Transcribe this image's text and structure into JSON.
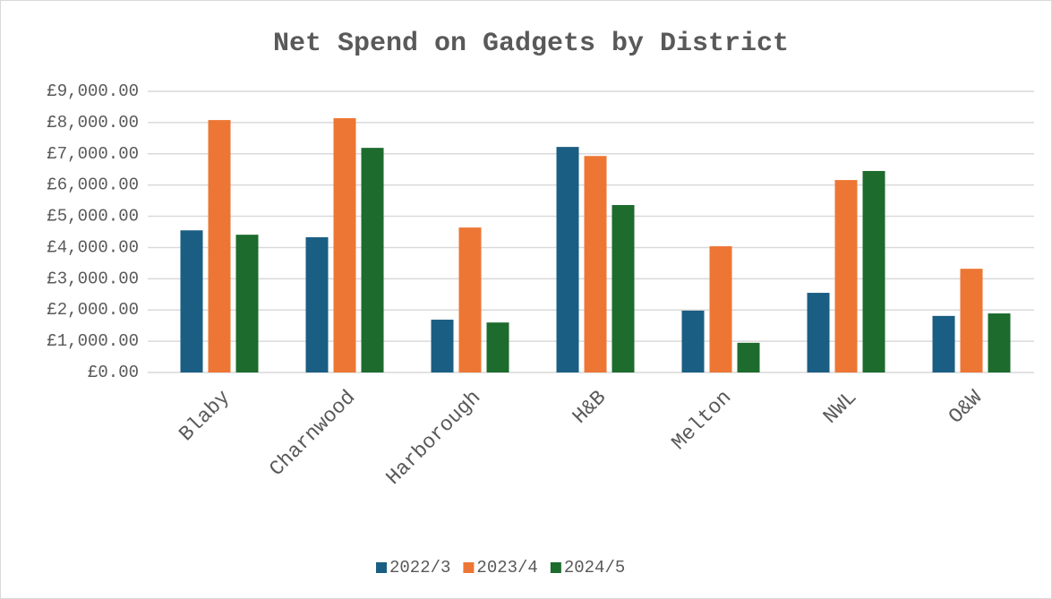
{
  "chart_data": {
    "type": "bar",
    "title": "Net Spend on Gadgets by District",
    "categories": [
      "Blaby",
      "Charnwood",
      "Harborough",
      "H&B",
      "Melton",
      "NWL",
      "O&W"
    ],
    "series": [
      {
        "name": "2022/3",
        "color": "#1b5e83",
        "values": [
          4550,
          4330,
          1690,
          7220,
          1980,
          2550,
          1810
        ]
      },
      {
        "name": "2023/4",
        "color": "#ed7634",
        "values": [
          8080,
          8140,
          4640,
          6930,
          4040,
          6160,
          3320
        ]
      },
      {
        "name": "2024/5",
        "color": "#1d6b2d",
        "values": [
          4410,
          7190,
          1600,
          5360,
          950,
          6450,
          1890
        ]
      }
    ],
    "ylim": [
      0,
      9000
    ],
    "yticks": [
      {
        "value": 0,
        "label": "£0.00"
      },
      {
        "value": 1000,
        "label": "£1,000.00"
      },
      {
        "value": 2000,
        "label": "£2,000.00"
      },
      {
        "value": 3000,
        "label": "£3,000.00"
      },
      {
        "value": 4000,
        "label": "£4,000.00"
      },
      {
        "value": 5000,
        "label": "£5,000.00"
      },
      {
        "value": 6000,
        "label": "£6,000.00"
      },
      {
        "value": 7000,
        "label": "£7,000.00"
      },
      {
        "value": 8000,
        "label": "£8,000.00"
      },
      {
        "value": 9000,
        "label": "£9,000.00"
      }
    ],
    "grid": true,
    "legend": "bottom"
  }
}
